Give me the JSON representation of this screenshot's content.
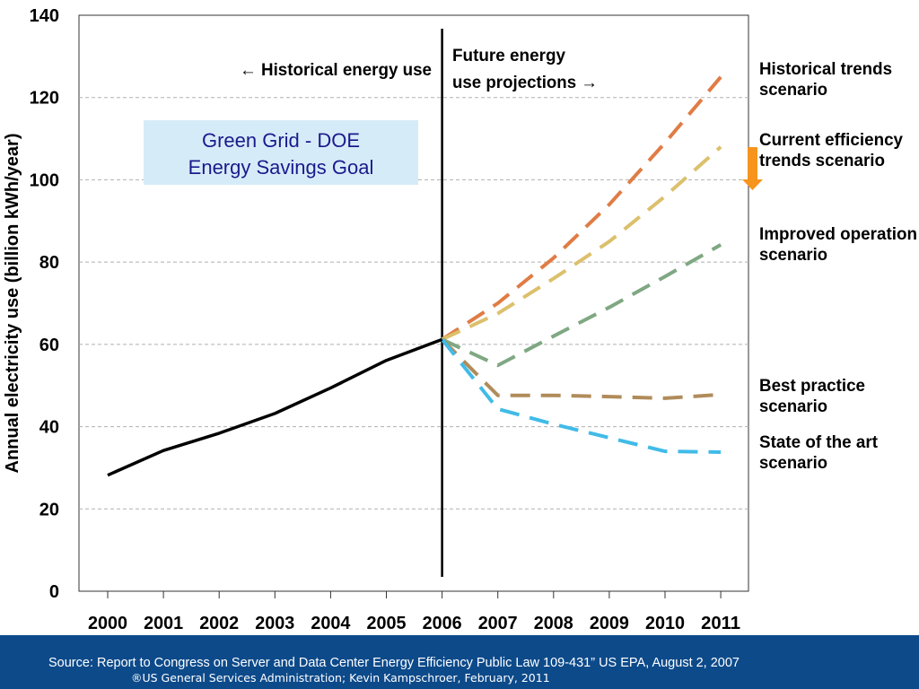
{
  "chart_data": {
    "type": "line",
    "ylabel": "Annual electricity use (billion kWh/year)",
    "ylim": [
      0,
      140
    ],
    "yticks": [
      "0",
      "20",
      "40",
      "60",
      "80",
      "100",
      "120",
      "140"
    ],
    "grid": true,
    "categories": [
      "2000",
      "2001",
      "2002",
      "2003",
      "2004",
      "2005",
      "2006",
      "2007",
      "2008",
      "2009",
      "2010",
      "2011"
    ],
    "historical": {
      "x": [
        "2000",
        "2001",
        "2002",
        "2003",
        "2004",
        "2005",
        "2006"
      ],
      "values": [
        28.2,
        34.2,
        38.4,
        43.2,
        49.4,
        56.1,
        61.2
      ],
      "color": "#000000"
    },
    "series": [
      {
        "name": "Historical trends scenario",
        "color": "#e07c44",
        "x": [
          "2006",
          "2007",
          "2008",
          "2009",
          "2010",
          "2011"
        ],
        "values": [
          61.2,
          70.0,
          81.0,
          94.0,
          109.0,
          125.0
        ]
      },
      {
        "name": "Current efficiency trends scenario",
        "color": "#dcc06c",
        "x": [
          "2006",
          "2007",
          "2008",
          "2009",
          "2010",
          "2011"
        ],
        "values": [
          61.2,
          67.5,
          76.0,
          85.0,
          96.0,
          108.0
        ]
      },
      {
        "name": "Improved operation scenario",
        "color": "#7fa882",
        "x": [
          "2006",
          "2007",
          "2008",
          "2009",
          "2010",
          "2011"
        ],
        "values": [
          61.2,
          54.9,
          62.0,
          69.0,
          76.5,
          84.2
        ]
      },
      {
        "name": "Best practice scenario",
        "color": "#b08c5a",
        "x": [
          "2006",
          "2007",
          "2008",
          "2009",
          "2010",
          "2011"
        ],
        "values": [
          61.2,
          47.6,
          47.6,
          47.3,
          46.9,
          47.8
        ]
      },
      {
        "name": "State of the art scenario",
        "color": "#41bbe8",
        "x": [
          "2006",
          "2007",
          "2008",
          "2009",
          "2010",
          "2011"
        ],
        "values": [
          61.2,
          44.3,
          40.6,
          37.3,
          34.0,
          33.8
        ]
      }
    ],
    "scenario_labels": [
      {
        "line1": "Historical trends",
        "line2": "scenario"
      },
      {
        "line1": "Current efficiency",
        "line2": "trends scenario"
      },
      {
        "line1": "Improved operation",
        "line2": "scenario"
      },
      {
        "line1": "Best practice",
        "line2": "scenario"
      },
      {
        "line1": "State of the art",
        "line2": "scenario"
      }
    ],
    "annotations": {
      "historical_label": "← Historical energy use",
      "future_label_line1": "Future energy",
      "future_label_line2": "use projections →",
      "goal_box_line1": "Green Grid - DOE",
      "goal_box_line2": "Energy Savings Goal",
      "divider_year": "2006",
      "arrow_color": "#f7941d",
      "goal_box_color": "#d6ebf8",
      "goal_text_color": "#1a1a8c"
    }
  },
  "footer": {
    "source": "Source: Report to Congress on Server and Data Center Energy Efficiency Public Law 109-431” US EPA, August 2, 2007",
    "credit": "®US General Services Administration; Kevin Kampschroer,  February, 2011",
    "background": "#0d4a8a"
  }
}
